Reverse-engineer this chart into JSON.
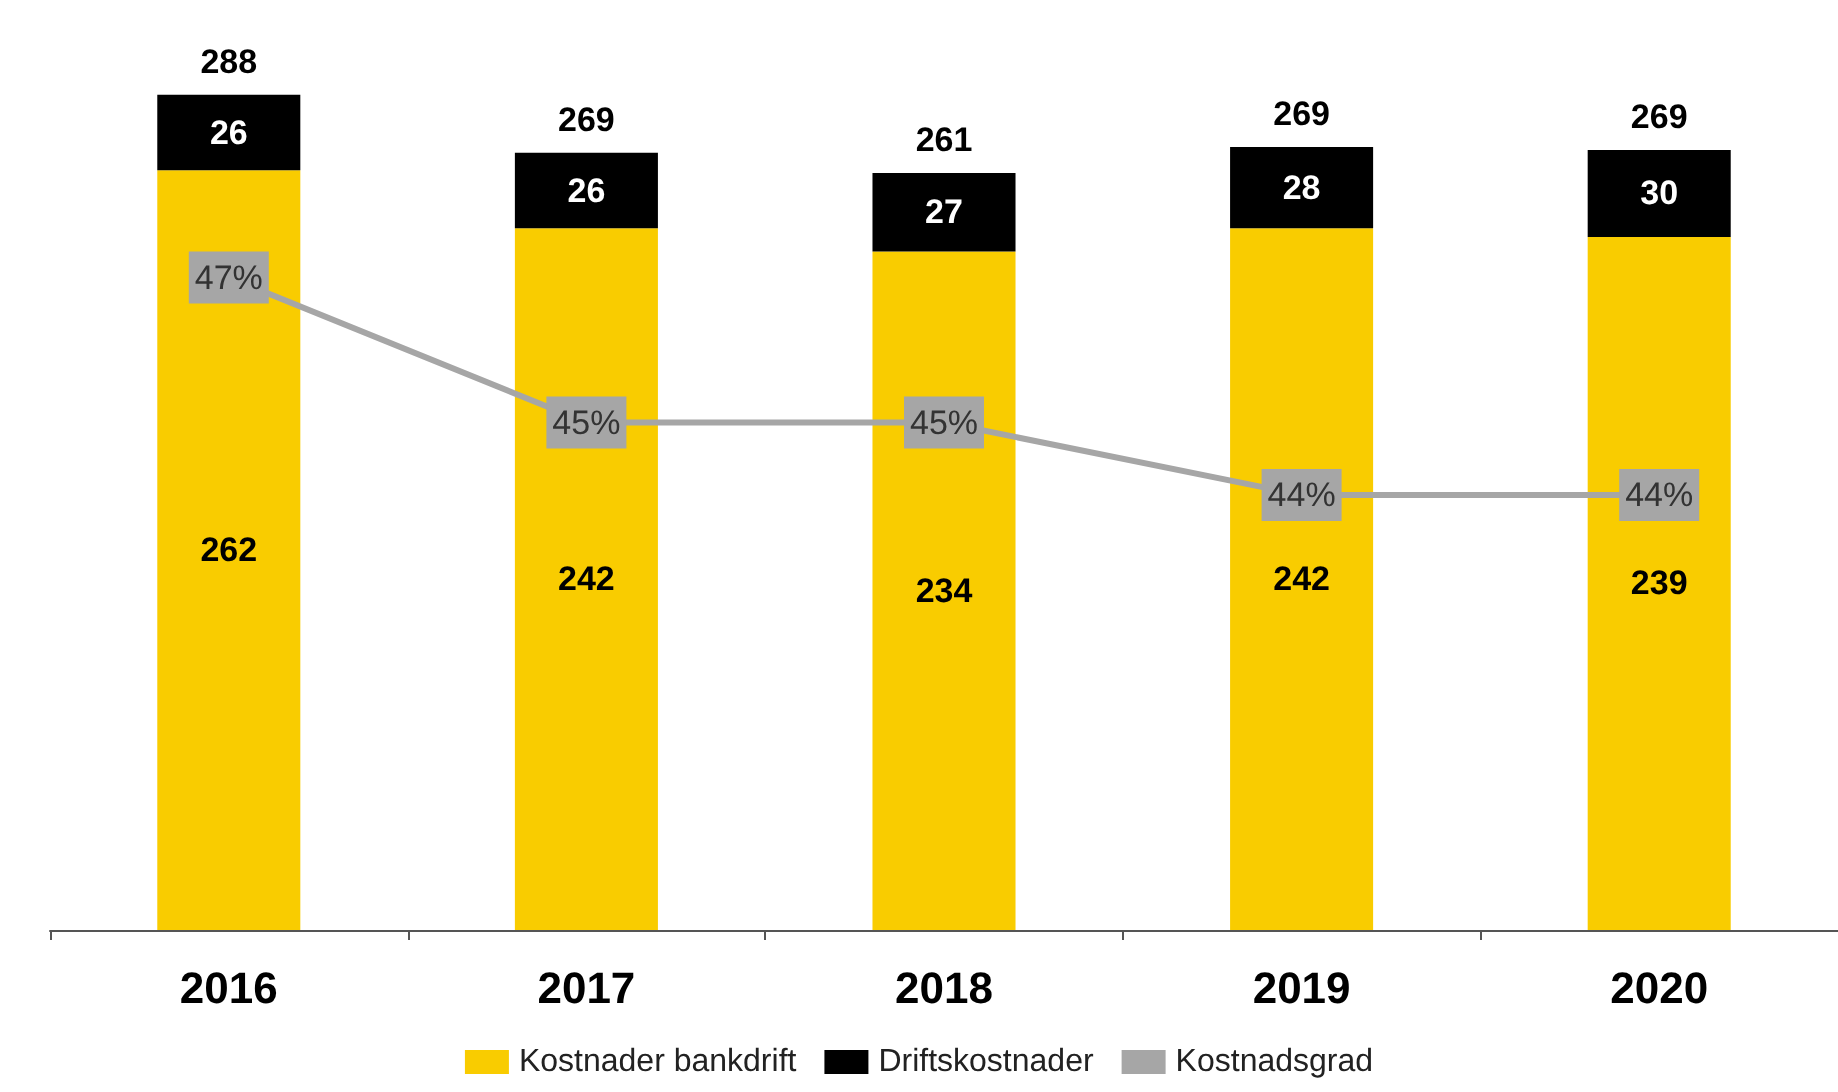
{
  "chart_data": {
    "type": "bar",
    "stacked": true,
    "categories": [
      "2016",
      "2017",
      "2018",
      "2019",
      "2020"
    ],
    "series": [
      {
        "name": "Kostnader bankdrift",
        "color": "#f9cc00",
        "values": [
          262,
          242,
          234,
          242,
          239
        ]
      },
      {
        "name": "Driftskostnader",
        "color": "#000000",
        "values": [
          26,
          26,
          27,
          28,
          30
        ]
      },
      {
        "name": "Kostnadsgrad",
        "type": "line",
        "axis": "y2",
        "color": "#a6a6a6",
        "marker": "square",
        "values": [
          47,
          45,
          45,
          44,
          44
        ],
        "value_labels": [
          "47%",
          "45%",
          "45%",
          "44%",
          "44%"
        ]
      }
    ],
    "totals": [
      "288",
      "269",
      "261",
      "269",
      "269"
    ],
    "data_labels": true,
    "legend": "bottom",
    "line_style": "solid"
  }
}
